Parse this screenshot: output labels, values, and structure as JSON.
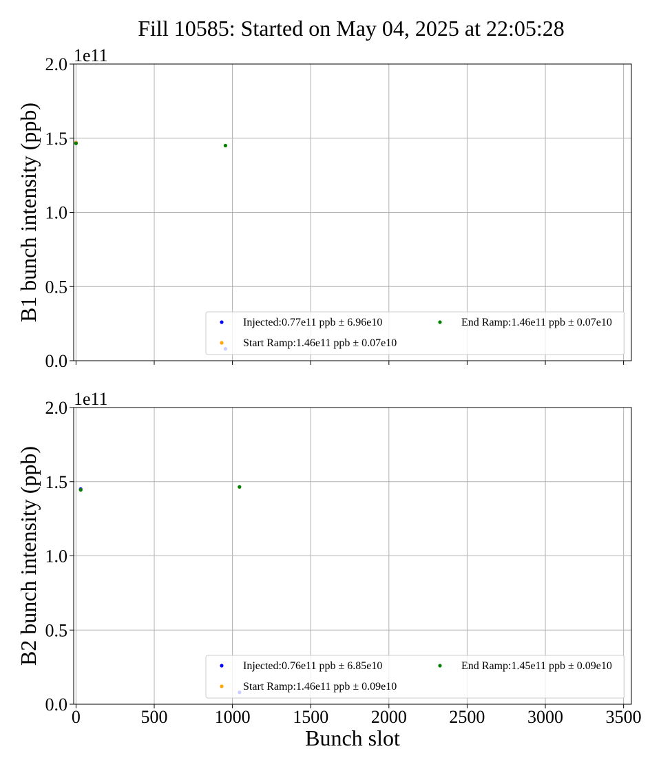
{
  "figure": {
    "title": "Fill 10585: Started on May 04, 2025 at 22:05:28"
  },
  "chart_data": [
    {
      "type": "scatter",
      "id": "b1",
      "title": "",
      "xlabel": "",
      "ylabel": "B1 bunch intensity (ppb)",
      "offset_label": "1e11",
      "xlim": [
        -15,
        3550
      ],
      "ylim": [
        0.0,
        2.0
      ],
      "y_scale_note": "values in units of 1e11",
      "x_ticks": [
        0,
        500,
        1000,
        1500,
        2000,
        2500,
        3000,
        3500
      ],
      "x_tick_labels": [
        "",
        "",
        "",
        "",
        "",
        "",
        "",
        ""
      ],
      "y_ticks": [
        0.0,
        0.5,
        1.0,
        1.5,
        2.0
      ],
      "y_tick_labels": [
        "0.0",
        "0.5",
        "1.0",
        "1.5",
        "2.0"
      ],
      "grid": true,
      "legend_position": "lower-right",
      "series": [
        {
          "name": "Injected:0.77e11 ppb ± 6.96e10",
          "color": "#0000ff",
          "points": [
            [
              0,
              1.47
            ],
            [
              955,
              0.08
            ]
          ]
        },
        {
          "name": "Start Ramp:1.46e11 ppb ± 0.07e10",
          "color": "#ffa500",
          "points": [
            [
              0,
              1.47
            ],
            [
              955,
              1.45
            ]
          ]
        },
        {
          "name": "End Ramp:1.46e11 ppb ± 0.07e10",
          "color": "#008000",
          "points": [
            [
              0,
              1.465
            ],
            [
              955,
              1.45
            ]
          ]
        }
      ]
    },
    {
      "type": "scatter",
      "id": "b2",
      "title": "",
      "xlabel": "Bunch slot",
      "ylabel": "B2 bunch intensity (ppb)",
      "offset_label": "1e11",
      "xlim": [
        -15,
        3550
      ],
      "ylim": [
        0.0,
        2.0
      ],
      "y_scale_note": "values in units of 1e11",
      "x_ticks": [
        0,
        500,
        1000,
        1500,
        2000,
        2500,
        3000,
        3500
      ],
      "x_tick_labels": [
        "0",
        "500",
        "1000",
        "1500",
        "2000",
        "2500",
        "3000",
        "3500"
      ],
      "y_ticks": [
        0.0,
        0.5,
        1.0,
        1.5,
        2.0
      ],
      "y_tick_labels": [
        "0.0",
        "0.5",
        "1.0",
        "1.5",
        "2.0"
      ],
      "grid": true,
      "legend_position": "lower-right",
      "series": [
        {
          "name": "Injected:0.76e11 ppb ± 6.85e10",
          "color": "#0000ff",
          "points": [
            [
              30,
              1.45
            ],
            [
              1045,
              0.08
            ]
          ]
        },
        {
          "name": "Start Ramp:1.46e11 ppb ± 0.09e10",
          "color": "#ffa500",
          "points": [
            [
              30,
              1.445
            ],
            [
              1045,
              1.465
            ]
          ]
        },
        {
          "name": "End Ramp:1.45e11 ppb ± 0.09e10",
          "color": "#008000",
          "points": [
            [
              30,
              1.445
            ],
            [
              1045,
              1.465
            ]
          ]
        }
      ]
    }
  ]
}
